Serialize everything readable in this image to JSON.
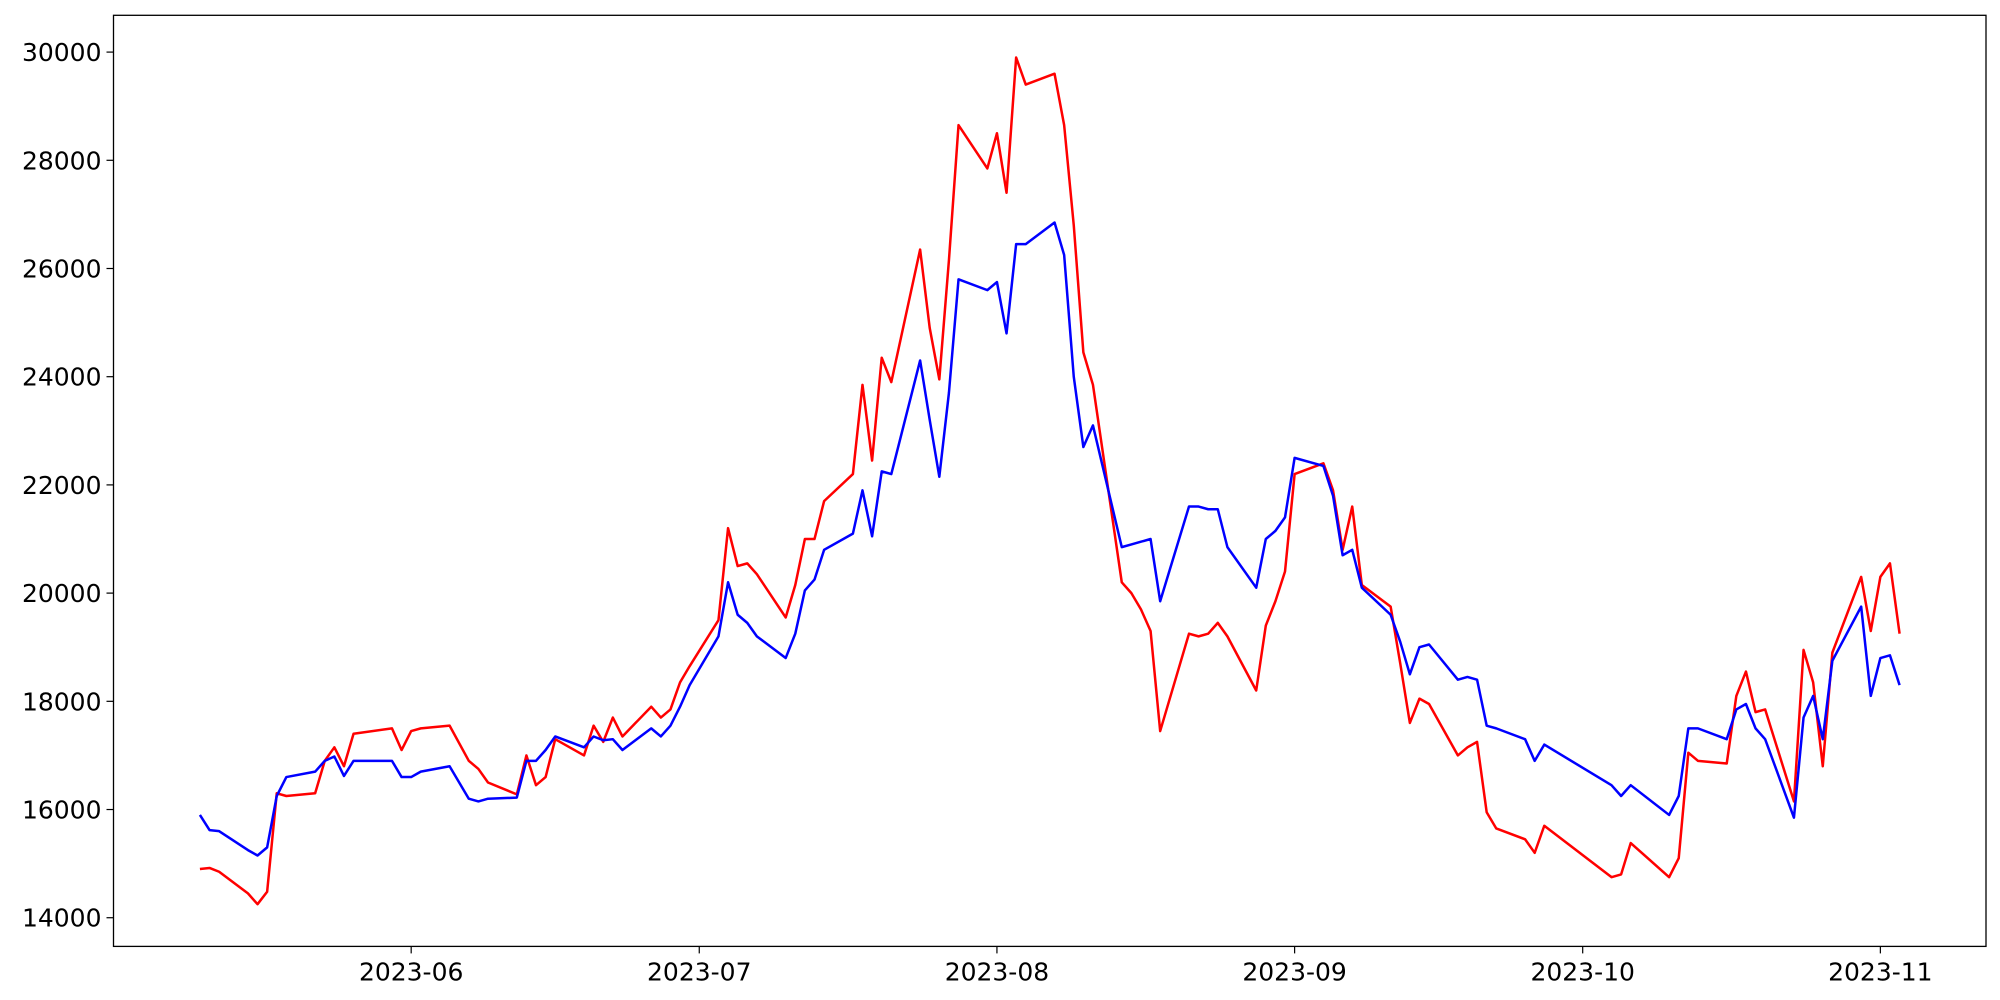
{
  "chart_data": {
    "type": "line",
    "x": [
      "2023-05-10",
      "2023-05-11",
      "2023-05-12",
      "2023-05-15",
      "2023-05-16",
      "2023-05-17",
      "2023-05-18",
      "2023-05-19",
      "2023-05-22",
      "2023-05-23",
      "2023-05-24",
      "2023-05-25",
      "2023-05-26",
      "2023-05-30",
      "2023-05-31",
      "2023-06-01",
      "2023-06-02",
      "2023-06-05",
      "2023-06-07",
      "2023-06-08",
      "2023-06-09",
      "2023-06-12",
      "2023-06-13",
      "2023-06-14",
      "2023-06-15",
      "2023-06-16",
      "2023-06-19",
      "2023-06-20",
      "2023-06-21",
      "2023-06-22",
      "2023-06-23",
      "2023-06-26",
      "2023-06-27",
      "2023-06-28",
      "2023-06-29",
      "2023-06-30",
      "2023-07-03",
      "2023-07-04",
      "2023-07-05",
      "2023-07-06",
      "2023-07-07",
      "2023-07-10",
      "2023-07-11",
      "2023-07-12",
      "2023-07-13",
      "2023-07-14",
      "2023-07-17",
      "2023-07-18",
      "2023-07-19",
      "2023-07-20",
      "2023-07-21",
      "2023-07-24",
      "2023-07-25",
      "2023-07-26",
      "2023-07-27",
      "2023-07-28",
      "2023-07-31",
      "2023-08-01",
      "2023-08-02",
      "2023-08-03",
      "2023-08-04",
      "2023-08-07",
      "2023-08-08",
      "2023-08-09",
      "2023-08-10",
      "2023-08-11",
      "2023-08-14",
      "2023-08-15",
      "2023-08-16",
      "2023-08-17",
      "2023-08-18",
      "2023-08-21",
      "2023-08-22",
      "2023-08-23",
      "2023-08-24",
      "2023-08-25",
      "2023-08-28",
      "2023-08-29",
      "2023-08-30",
      "2023-08-31",
      "2023-09-01",
      "2023-09-04",
      "2023-09-05",
      "2023-09-06",
      "2023-09-07",
      "2023-09-08",
      "2023-09-11",
      "2023-09-12",
      "2023-09-13",
      "2023-09-14",
      "2023-09-15",
      "2023-09-18",
      "2023-09-19",
      "2023-09-20",
      "2023-09-21",
      "2023-09-22",
      "2023-09-25",
      "2023-09-26",
      "2023-09-27",
      "2023-10-04",
      "2023-10-05",
      "2023-10-06",
      "2023-10-10",
      "2023-10-11",
      "2023-10-12",
      "2023-10-13",
      "2023-10-16",
      "2023-10-17",
      "2023-10-18",
      "2023-10-19",
      "2023-10-20",
      "2023-10-23",
      "2023-10-24",
      "2023-10-25",
      "2023-10-26",
      "2023-10-27",
      "2023-10-30",
      "2023-10-31",
      "2023-11-01",
      "2023-11-02",
      "2023-11-03"
    ],
    "series": [
      {
        "color": "#ff0000",
        "values": [
          14900,
          14920,
          14850,
          14450,
          14250,
          14480,
          16300,
          16250,
          16300,
          16900,
          17150,
          16800,
          17400,
          17500,
          17100,
          17450,
          17500,
          17550,
          16900,
          16750,
          16500,
          16280,
          17000,
          16450,
          16600,
          17300,
          17000,
          17550,
          17250,
          17700,
          17350,
          17900,
          17700,
          17850,
          18350,
          18650,
          19500,
          21200,
          20500,
          20550,
          20350,
          19550,
          20150,
          21000,
          21000,
          21700,
          22200,
          23850,
          22450,
          24350,
          23900,
          26350,
          24900,
          23950,
          26150,
          28650,
          27850,
          28500,
          27400,
          29900,
          29400,
          29600,
          28650,
          26800,
          24450,
          23850,
          20200,
          20000,
          19700,
          19300,
          17450,
          19250,
          19200,
          19250,
          19450,
          19200,
          18200,
          19400,
          19850,
          20400,
          22200,
          22400,
          21900,
          20800,
          21600,
          20150,
          19750,
          18700,
          17600,
          18050,
          17950,
          17000,
          17150,
          17250,
          15950,
          15650,
          15450,
          15200,
          15700,
          14750,
          14800,
          15380,
          14750,
          15100,
          17050,
          16900,
          16850,
          18100,
          18550,
          17800,
          17850,
          16150,
          18950,
          18350,
          16800,
          18900,
          20300,
          19300,
          20300,
          20550,
          19250
        ]
      },
      {
        "color": "#0000ff",
        "values": [
          15900,
          15620,
          15600,
          15250,
          15150,
          15300,
          16250,
          16600,
          16700,
          16900,
          16980,
          16620,
          16900,
          16900,
          16600,
          16600,
          16700,
          16800,
          16200,
          16150,
          16200,
          16220,
          16900,
          16900,
          17100,
          17350,
          17150,
          17350,
          17280,
          17300,
          17100,
          17500,
          17350,
          17550,
          17900,
          18300,
          19200,
          20200,
          19600,
          19450,
          19200,
          18800,
          19250,
          20050,
          20250,
          20800,
          21100,
          21900,
          21050,
          22250,
          22200,
          24300,
          23200,
          22150,
          23700,
          25800,
          25600,
          25750,
          24800,
          26450,
          26450,
          26850,
          26250,
          24000,
          22700,
          23100,
          20850,
          20900,
          20950,
          21000,
          19850,
          21600,
          21600,
          21550,
          21550,
          20850,
          20100,
          21000,
          21150,
          21400,
          22500,
          22350,
          21800,
          20700,
          20800,
          20100,
          19600,
          19100,
          18500,
          19000,
          19050,
          18400,
          18450,
          18400,
          17550,
          17500,
          17300,
          16900,
          17200,
          16450,
          16250,
          16450,
          15900,
          16250,
          17500,
          17500,
          17300,
          17850,
          17950,
          17500,
          17300,
          15850,
          17700,
          18100,
          17300,
          18750,
          19750,
          18100,
          18800,
          18850,
          18300
        ]
      }
    ],
    "xlim": [
      "2023-05-01",
      "2023-11-12"
    ],
    "xticks": [
      {
        "value": "2023-06-01",
        "label": "2023-06"
      },
      {
        "value": "2023-07-01",
        "label": "2023-07"
      },
      {
        "value": "2023-08-01",
        "label": "2023-08"
      },
      {
        "value": "2023-09-01",
        "label": "2023-09"
      },
      {
        "value": "2023-10-01",
        "label": "2023-10"
      },
      {
        "value": "2023-11-01",
        "label": "2023-11"
      }
    ],
    "ylim": [
      13470,
      30680
    ],
    "yticks": [
      14000,
      16000,
      18000,
      20000,
      22000,
      24000,
      26000,
      28000,
      30000
    ],
    "grid": false
  }
}
